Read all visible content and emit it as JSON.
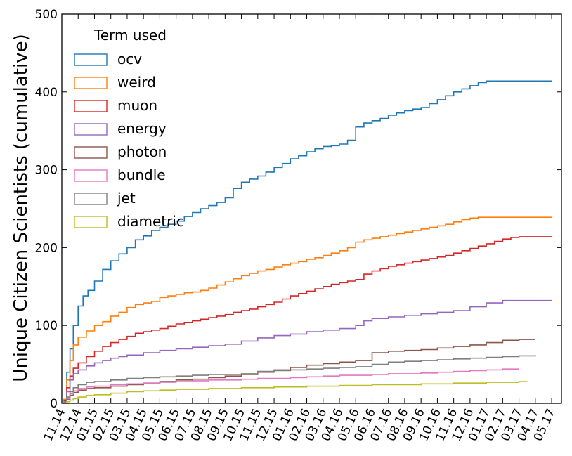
{
  "chart_data": {
    "type": "line",
    "title": "",
    "xlabel": "",
    "ylabel": "Unique Citizen Scientists (cumulative)",
    "ylim": [
      0,
      500
    ],
    "yticks": [
      0,
      100,
      200,
      300,
      400,
      500
    ],
    "xtick_labels": [
      "11.14",
      "12.14",
      "01.15",
      "02.15",
      "03.15",
      "04.15",
      "05.15",
      "06.15",
      "07.15",
      "08.15",
      "09.15",
      "10.15",
      "11.15",
      "12.15",
      "01.16",
      "02.16",
      "03.16",
      "04.16",
      "05.16",
      "06.16",
      "07.16",
      "08.16",
      "09.16",
      "10.16",
      "11.16",
      "12.16",
      "01.17",
      "02.17",
      "03.17",
      "04.17",
      "05.17"
    ],
    "x_unit": "months since 11.14",
    "xlim": [
      0,
      30.6
    ],
    "legend": {
      "title": "Term used",
      "position": "top-left"
    },
    "grid": false,
    "series": [
      {
        "name": "ocv",
        "color": "#1f77b4",
        "x": [
          0.1,
          0.3,
          0.5,
          0.7,
          1.0,
          1.3,
          1.6,
          2.0,
          2.5,
          3.0,
          3.5,
          4.0,
          4.5,
          5.0,
          5.5,
          6.0,
          6.5,
          7.0,
          7.5,
          8.0,
          8.5,
          9.0,
          9.5,
          10.0,
          10.5,
          11.0,
          11.5,
          12.0,
          12.5,
          13.0,
          13.5,
          14.0,
          14.5,
          15.0,
          15.5,
          16.0,
          16.5,
          17.0,
          17.5,
          18.0,
          18.5,
          19.0,
          19.5,
          20.0,
          20.5,
          21.0,
          21.5,
          22.0,
          22.5,
          23.0,
          23.5,
          24.0,
          24.5,
          25.0,
          25.5,
          26.0,
          26.5,
          27.0,
          27.5,
          28.0,
          28.5,
          29.0,
          29.5,
          30.0
        ],
        "y": [
          5,
          40,
          70,
          100,
          125,
          138,
          145,
          157,
          172,
          183,
          192,
          200,
          210,
          215,
          222,
          226,
          230,
          234,
          240,
          245,
          250,
          254,
          258,
          264,
          276,
          284,
          288,
          292,
          297,
          303,
          308,
          314,
          318,
          323,
          327,
          330,
          331,
          333,
          338,
          355,
          360,
          363,
          366,
          370,
          373,
          376,
          378,
          380,
          385,
          390,
          395,
          400,
          404,
          408,
          412,
          414,
          414,
          414,
          414,
          414,
          414,
          414,
          414,
          414
        ]
      },
      {
        "name": "weird",
        "color": "#ff7f0e",
        "x": [
          0.1,
          0.3,
          0.5,
          0.7,
          1.0,
          1.5,
          2.0,
          2.5,
          3.0,
          3.5,
          4.0,
          4.5,
          5.0,
          5.5,
          6.0,
          6.5,
          7.0,
          7.5,
          8.0,
          8.5,
          9.0,
          9.5,
          10.0,
          10.5,
          11.0,
          11.5,
          12.0,
          12.5,
          13.0,
          13.5,
          14.0,
          14.5,
          15.0,
          15.5,
          16.0,
          16.5,
          17.0,
          17.5,
          18.0,
          18.5,
          19.0,
          19.5,
          20.0,
          20.5,
          21.0,
          21.5,
          22.0,
          22.5,
          23.0,
          23.5,
          24.0,
          24.5,
          25.0,
          25.5,
          26.0,
          26.5,
          27.0,
          27.5,
          28.0,
          28.5,
          29.0,
          29.5,
          30.0
        ],
        "y": [
          5,
          30,
          55,
          75,
          85,
          93,
          100,
          105,
          112,
          117,
          123,
          127,
          129,
          131,
          136,
          138,
          140,
          142,
          143,
          145,
          148,
          152,
          156,
          160,
          164,
          167,
          170,
          172,
          175,
          178,
          180,
          182,
          185,
          187,
          190,
          193,
          196,
          200,
          207,
          210,
          212,
          214,
          216,
          218,
          220,
          222,
          224,
          226,
          228,
          230,
          233,
          236,
          238,
          239,
          239,
          239,
          239,
          239,
          239,
          239,
          239,
          239,
          239
        ]
      },
      {
        "name": "muon",
        "color": "#d62728",
        "x": [
          0.1,
          0.3,
          0.5,
          0.7,
          1.0,
          1.5,
          2.0,
          2.5,
          3.0,
          3.5,
          4.0,
          4.5,
          5.0,
          5.5,
          6.0,
          6.5,
          7.0,
          7.5,
          8.0,
          8.5,
          9.0,
          9.5,
          10.0,
          10.5,
          11.0,
          11.5,
          12.0,
          12.5,
          13.0,
          13.5,
          14.0,
          14.5,
          15.0,
          15.5,
          16.0,
          16.5,
          17.0,
          17.5,
          18.0,
          18.5,
          19.0,
          19.5,
          20.0,
          20.5,
          21.0,
          21.5,
          22.0,
          22.5,
          23.0,
          23.5,
          24.0,
          24.5,
          25.0,
          25.5,
          26.0,
          26.5,
          27.0,
          27.5,
          28.0,
          28.5,
          29.0,
          29.5,
          30.0
        ],
        "y": [
          3,
          20,
          35,
          45,
          52,
          60,
          67,
          73,
          78,
          82,
          86,
          90,
          92,
          94,
          96,
          99,
          102,
          104,
          106,
          108,
          110,
          112,
          114,
          117,
          119,
          121,
          124,
          127,
          130,
          134,
          138,
          141,
          144,
          147,
          150,
          153,
          155,
          157,
          159,
          166,
          170,
          173,
          176,
          178,
          180,
          182,
          184,
          186,
          188,
          190,
          193,
          196,
          199,
          202,
          205,
          208,
          211,
          213,
          214,
          214,
          214,
          214,
          214
        ]
      },
      {
        "name": "energy",
        "color": "#9467bd",
        "x": [
          0.1,
          0.3,
          0.5,
          0.7,
          1.0,
          1.5,
          2.0,
          2.5,
          3.0,
          3.5,
          4.0,
          5.0,
          6.0,
          7.0,
          8.0,
          9.0,
          10.0,
          11.0,
          12.0,
          13.0,
          14.0,
          15.0,
          16.0,
          17.0,
          18.0,
          18.5,
          19.0,
          20.0,
          21.0,
          22.0,
          23.0,
          24.0,
          25.0,
          26.0,
          27.0,
          28.0,
          29.0,
          30.0
        ],
        "y": [
          2,
          15,
          30,
          38,
          43,
          48,
          52,
          55,
          58,
          60,
          62,
          65,
          68,
          70,
          72,
          74,
          76,
          80,
          84,
          87,
          89,
          92,
          94,
          96,
          100,
          106,
          109,
          111,
          113,
          115,
          117,
          119,
          124,
          129,
          132,
          132,
          132,
          132
        ]
      },
      {
        "name": "photon",
        "color": "#8c564b",
        "x": [
          0.1,
          0.3,
          0.5,
          0.7,
          1.0,
          1.5,
          2.0,
          3.0,
          4.0,
          5.0,
          6.0,
          7.0,
          8.0,
          9.0,
          10.0,
          11.0,
          12.0,
          13.0,
          14.0,
          15.0,
          16.0,
          17.0,
          18.0,
          19.0,
          20.0,
          21.0,
          22.0,
          23.0,
          24.0,
          25.0,
          26.0,
          27.0,
          28.0,
          29.0
        ],
        "y": [
          1,
          5,
          10,
          14,
          17,
          19,
          20,
          22,
          24,
          26,
          28,
          30,
          31,
          33,
          35,
          37,
          40,
          43,
          46,
          49,
          51,
          53,
          55,
          65,
          67,
          68,
          69,
          71,
          73,
          75,
          78,
          81,
          82,
          82
        ]
      },
      {
        "name": "bundle",
        "color": "#e377c2",
        "x": [
          0.1,
          0.3,
          0.5,
          0.7,
          1.0,
          1.5,
          2.0,
          3.0,
          4.0,
          5.0,
          6.0,
          7.0,
          8.0,
          9.0,
          10.0,
          11.0,
          12.0,
          13.0,
          14.0,
          15.0,
          16.0,
          17.0,
          18.0,
          19.0,
          20.0,
          21.0,
          22.0,
          23.0,
          24.0,
          25.0,
          26.0,
          27.0,
          28.0
        ],
        "y": [
          1,
          6,
          12,
          16,
          19,
          21,
          22,
          24,
          25,
          26,
          27,
          28,
          29,
          30,
          30,
          31,
          32,
          32,
          33,
          34,
          35,
          36,
          36,
          37,
          38,
          38,
          39,
          40,
          41,
          42,
          43,
          44,
          44
        ]
      },
      {
        "name": "jet",
        "color": "#7f7f7f",
        "x": [
          0.1,
          0.3,
          0.5,
          0.7,
          1.0,
          1.5,
          2.0,
          3.0,
          4.0,
          5.0,
          6.0,
          7.0,
          8.0,
          9.0,
          10.0,
          11.0,
          12.0,
          13.0,
          14.0,
          15.0,
          16.0,
          17.0,
          18.0,
          19.0,
          20.0,
          21.0,
          22.0,
          23.0,
          24.0,
          25.0,
          26.0,
          27.0,
          28.0,
          29.0
        ],
        "y": [
          1,
          8,
          15,
          20,
          24,
          27,
          28,
          30,
          32,
          33,
          34,
          35,
          36,
          37,
          37,
          38,
          41,
          42,
          43,
          44,
          45,
          46,
          47,
          50,
          53,
          54,
          55,
          56,
          57,
          58,
          59,
          60,
          61,
          62
        ]
      },
      {
        "name": "diametric",
        "color": "#bcbd22",
        "x": [
          0.1,
          0.3,
          0.5,
          0.7,
          1.0,
          1.5,
          2.0,
          3.0,
          4.0,
          5.0,
          6.0,
          7.0,
          8.0,
          9.0,
          10.0,
          11.0,
          12.0,
          13.0,
          14.0,
          15.0,
          16.0,
          17.0,
          18.0,
          19.0,
          20.0,
          21.0,
          22.0,
          23.0,
          24.0,
          25.0,
          26.0,
          27.0,
          28.0,
          28.5
        ],
        "y": [
          0,
          2,
          4,
          6,
          8,
          10,
          11,
          13,
          15,
          16,
          17,
          18,
          18,
          19,
          19,
          20,
          20,
          21,
          21,
          22,
          22,
          23,
          23,
          24,
          24,
          24,
          25,
          25,
          26,
          26,
          27,
          27,
          28,
          28
        ]
      }
    ]
  }
}
